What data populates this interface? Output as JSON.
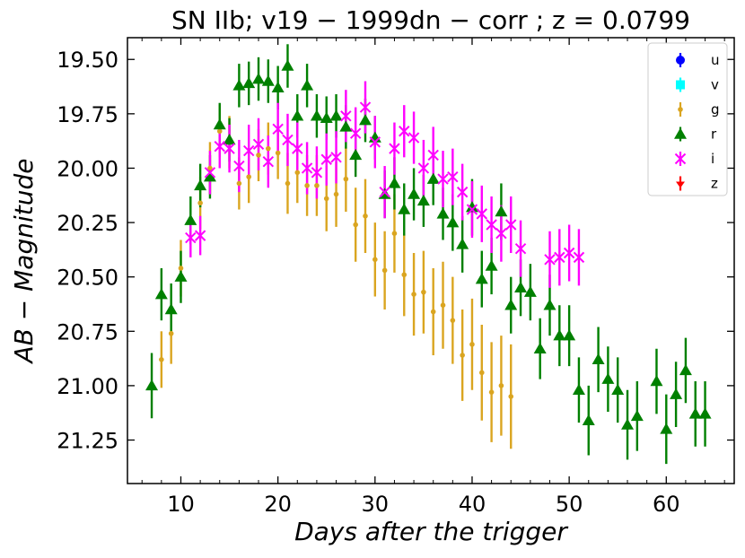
{
  "chart_data": {
    "type": "scatter",
    "title": "SN IIb; v19 − 1999dn − corr ; z  =  0.0799",
    "xlabel": "Days after the trigger",
    "ylabel": "AB − Magnitude",
    "xlim": [
      4.5,
      67
    ],
    "ylim": [
      21.45,
      19.4
    ],
    "y_inverted": true,
    "xticks": [
      10,
      20,
      30,
      40,
      50,
      60
    ],
    "yticks": [
      19.5,
      19.75,
      20.0,
      20.25,
      20.5,
      20.75,
      21.0,
      21.25
    ],
    "ytick_labels": [
      "19.50",
      "19.75",
      "20.00",
      "20.25",
      "20.50",
      "20.75",
      "21.00",
      "21.25"
    ],
    "legend_position": "top-right",
    "series": [
      {
        "name": "u",
        "color": "#0000ff",
        "marker": "circle",
        "points": []
      },
      {
        "name": "v",
        "color": "#00ffff",
        "marker": "square",
        "points": []
      },
      {
        "name": "g",
        "color": "#daa520",
        "marker": "small-circle",
        "points": [
          [
            8,
            20.88,
            0.13
          ],
          [
            9,
            20.76,
            0.14
          ],
          [
            10,
            20.46,
            0.13
          ],
          [
            12,
            20.16,
            0.12
          ],
          [
            13,
            20.0,
            0.12
          ],
          [
            14,
            19.83,
            0.12
          ],
          [
            15,
            19.88,
            0.12
          ],
          [
            16,
            20.07,
            0.12
          ],
          [
            17,
            20.04,
            0.12
          ],
          [
            18,
            19.94,
            0.12
          ],
          [
            19,
            19.91,
            0.12
          ],
          [
            20,
            19.93,
            0.12
          ],
          [
            21,
            20.07,
            0.14
          ],
          [
            22,
            20.02,
            0.14
          ],
          [
            23,
            20.08,
            0.14
          ],
          [
            24,
            20.08,
            0.14
          ],
          [
            25,
            20.14,
            0.15
          ],
          [
            26,
            20.12,
            0.15
          ],
          [
            27,
            20.05,
            0.15
          ],
          [
            28,
            20.26,
            0.17
          ],
          [
            29,
            20.22,
            0.17
          ],
          [
            30,
            20.42,
            0.17
          ],
          [
            31,
            20.47,
            0.18
          ],
          [
            32,
            20.3,
            0.18
          ],
          [
            33,
            20.49,
            0.19
          ],
          [
            34,
            20.58,
            0.19
          ],
          [
            35,
            20.57,
            0.19
          ],
          [
            36,
            20.66,
            0.2
          ],
          [
            37,
            20.63,
            0.2
          ],
          [
            38,
            20.7,
            0.2
          ],
          [
            39,
            20.86,
            0.21
          ],
          [
            40,
            20.81,
            0.21
          ],
          [
            41,
            20.94,
            0.22
          ],
          [
            42,
            21.03,
            0.23
          ],
          [
            43,
            21.0,
            0.23
          ],
          [
            44,
            21.05,
            0.24
          ]
        ]
      },
      {
        "name": "r",
        "color": "#008000",
        "marker": "triangle",
        "points": [
          [
            7,
            21.0,
            0.15
          ],
          [
            8,
            20.58,
            0.12
          ],
          [
            9,
            20.65,
            0.12
          ],
          [
            10,
            20.5,
            0.12
          ],
          [
            11,
            20.24,
            0.11
          ],
          [
            12,
            20.08,
            0.1
          ],
          [
            13,
            20.04,
            0.1
          ],
          [
            14,
            19.8,
            0.1
          ],
          [
            15,
            19.87,
            0.1
          ],
          [
            16,
            19.62,
            0.1
          ],
          [
            17,
            19.61,
            0.1
          ],
          [
            18,
            19.59,
            0.1
          ],
          [
            19,
            19.6,
            0.1
          ],
          [
            20,
            19.63,
            0.1
          ],
          [
            21,
            19.53,
            0.1
          ],
          [
            22,
            19.76,
            0.1
          ],
          [
            23,
            19.62,
            0.1
          ],
          [
            24,
            19.76,
            0.1
          ],
          [
            25,
            19.77,
            0.1
          ],
          [
            26,
            19.76,
            0.1
          ],
          [
            27,
            19.81,
            0.1
          ],
          [
            28,
            19.94,
            0.1
          ],
          [
            29,
            19.78,
            0.1
          ],
          [
            30,
            19.86,
            0.1
          ],
          [
            31,
            20.12,
            0.11
          ],
          [
            32,
            20.07,
            0.12
          ],
          [
            33,
            20.19,
            0.12
          ],
          [
            34,
            20.12,
            0.12
          ],
          [
            35,
            20.15,
            0.12
          ],
          [
            36,
            20.05,
            0.12
          ],
          [
            37,
            20.21,
            0.12
          ],
          [
            38,
            20.25,
            0.13
          ],
          [
            39,
            20.35,
            0.13
          ],
          [
            40,
            20.18,
            0.13
          ],
          [
            41,
            20.51,
            0.13
          ],
          [
            42,
            20.45,
            0.13
          ],
          [
            43,
            20.2,
            0.13
          ],
          [
            44,
            20.63,
            0.13
          ],
          [
            45,
            20.55,
            0.13
          ],
          [
            46,
            20.57,
            0.13
          ],
          [
            47,
            20.83,
            0.14
          ],
          [
            48,
            20.63,
            0.14
          ],
          [
            49,
            20.77,
            0.14
          ],
          [
            50,
            20.77,
            0.14
          ],
          [
            51,
            21.02,
            0.15
          ],
          [
            52,
            21.16,
            0.16
          ],
          [
            53,
            20.88,
            0.15
          ],
          [
            54,
            20.97,
            0.15
          ],
          [
            55,
            21.02,
            0.15
          ],
          [
            56,
            21.18,
            0.16
          ],
          [
            57,
            21.14,
            0.16
          ],
          [
            59,
            20.98,
            0.15
          ],
          [
            60,
            21.2,
            0.16
          ],
          [
            61,
            21.04,
            0.15
          ],
          [
            62,
            20.93,
            0.15
          ],
          [
            63,
            21.13,
            0.15
          ],
          [
            64,
            21.13,
            0.15
          ]
        ]
      },
      {
        "name": "i",
        "color": "#ff00ff",
        "marker": "x",
        "points": [
          [
            11,
            20.32,
            0.09
          ],
          [
            12,
            20.31,
            0.09
          ],
          [
            13,
            20.02,
            0.1
          ],
          [
            14,
            19.9,
            0.1
          ],
          [
            15,
            19.91,
            0.11
          ],
          [
            16,
            19.99,
            0.12
          ],
          [
            17,
            19.92,
            0.12
          ],
          [
            18,
            19.89,
            0.12
          ],
          [
            19,
            19.97,
            0.12
          ],
          [
            20,
            19.82,
            0.12
          ],
          [
            21,
            19.87,
            0.12
          ],
          [
            22,
            19.91,
            0.12
          ],
          [
            23,
            20.0,
            0.12
          ],
          [
            24,
            20.02,
            0.12
          ],
          [
            25,
            19.96,
            0.12
          ],
          [
            26,
            19.95,
            0.12
          ],
          [
            27,
            19.76,
            0.12
          ],
          [
            28,
            19.84,
            0.12
          ],
          [
            29,
            19.72,
            0.12
          ],
          [
            30,
            19.88,
            0.12
          ],
          [
            31,
            20.11,
            0.12
          ],
          [
            32,
            19.91,
            0.12
          ],
          [
            33,
            19.83,
            0.12
          ],
          [
            34,
            19.86,
            0.12
          ],
          [
            35,
            20.0,
            0.13
          ],
          [
            36,
            19.94,
            0.13
          ],
          [
            37,
            20.05,
            0.13
          ],
          [
            38,
            20.04,
            0.13
          ],
          [
            39,
            20.11,
            0.13
          ],
          [
            40,
            20.19,
            0.13
          ],
          [
            41,
            20.21,
            0.13
          ],
          [
            42,
            20.26,
            0.13
          ],
          [
            43,
            20.3,
            0.13
          ],
          [
            44,
            20.26,
            0.13
          ],
          [
            45,
            20.37,
            0.13
          ],
          [
            48,
            20.42,
            0.13
          ],
          [
            49,
            20.41,
            0.13
          ],
          [
            50,
            20.39,
            0.13
          ],
          [
            51,
            20.41,
            0.13
          ]
        ]
      },
      {
        "name": "z",
        "color": "#ff0000",
        "marker": "tri-down",
        "points": []
      }
    ]
  }
}
